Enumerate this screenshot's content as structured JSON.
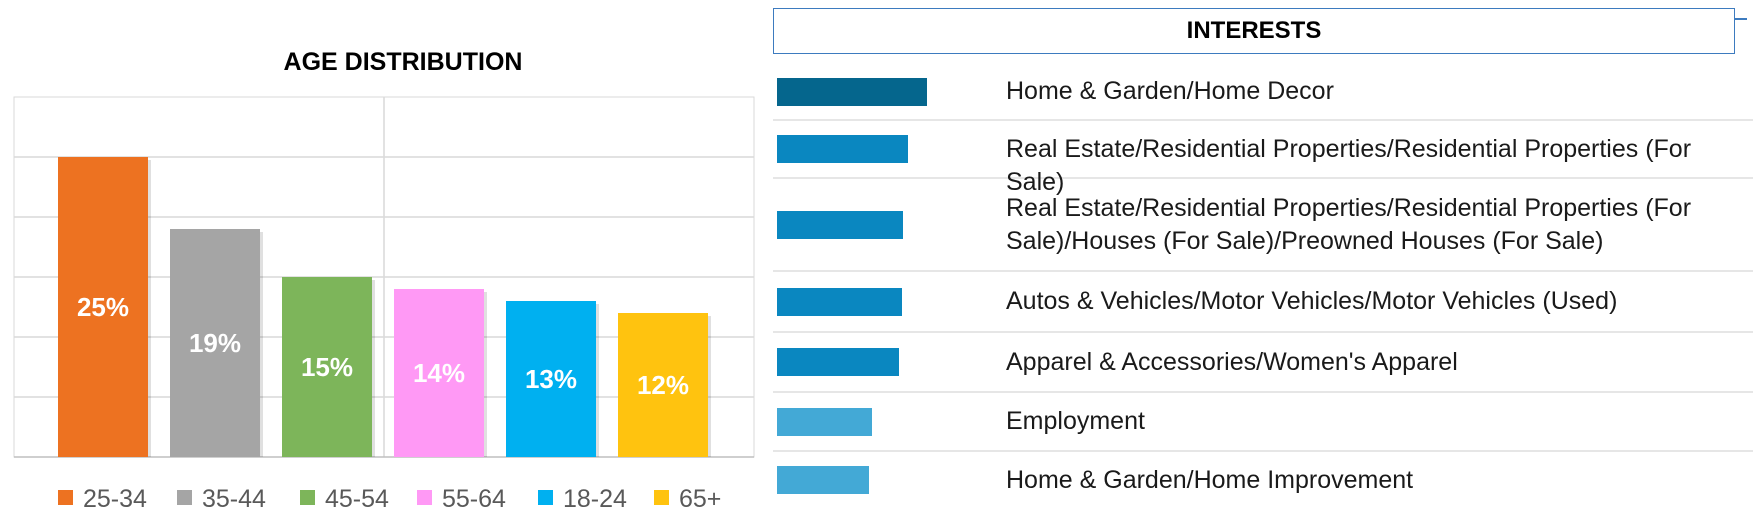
{
  "chart_data": [
    {
      "type": "bar",
      "title": "AGE DISTRIBUTION",
      "xlabel": "",
      "ylabel": "",
      "categories": [
        "25-34",
        "35-44",
        "45-54",
        "55-64",
        "18-24",
        "65+"
      ],
      "values": [
        25,
        19,
        15,
        14,
        13,
        12
      ],
      "data_labels": [
        "25%",
        "19%",
        "15%",
        "14%",
        "13%",
        "12%"
      ],
      "colors": [
        "#ed7221",
        "#a5a5a5",
        "#7db55a",
        "#ff99f5",
        "#00b0f0",
        "#ffc30f"
      ],
      "ylim": [
        0,
        30
      ],
      "grid": true,
      "legend": "bottom"
    },
    {
      "type": "bar",
      "orientation": "horizontal",
      "title": "INTERESTS",
      "categories": [
        "Home & Garden/Home Decor",
        "Real Estate/Residential Properties/Residential Properties (For Sale)",
        "Real Estate/Residential Properties/Residential Properties (For Sale)/Houses (For Sale)/Preowned Houses (For Sale)",
        "Autos & Vehicles/Motor Vehicles/Motor Vehicles (Used)",
        "Apparel & Accessories/Women's Apparel",
        "Employment",
        "Home & Garden/Home Improvement"
      ],
      "values": [
        1.0,
        0.87,
        0.84,
        0.83,
        0.81,
        0.63,
        0.61
      ],
      "colors": [
        "#05668d",
        "#0a87c0",
        "#0a87c0",
        "#0a87c0",
        "#0a87c0",
        "#43a9d6",
        "#43a9d6"
      ]
    }
  ]
}
